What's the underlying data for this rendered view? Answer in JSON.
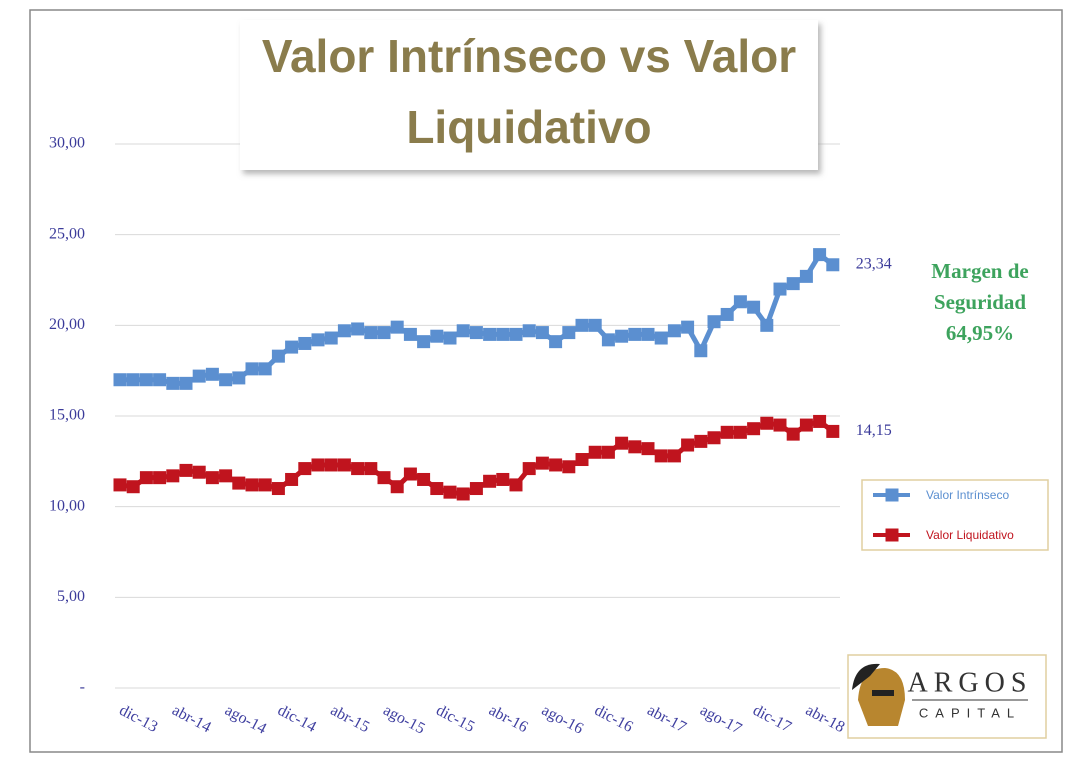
{
  "chart_data": {
    "type": "line",
    "title_lines": [
      "Valor Intrínseco vs Valor",
      "Liquidativo"
    ],
    "categories": [
      "dic-13",
      null,
      null,
      null,
      "abr-14",
      null,
      null,
      null,
      "ago-14",
      null,
      null,
      null,
      "dic-14",
      null,
      null,
      null,
      "abr-15",
      null,
      null,
      null,
      "ago-15",
      null,
      null,
      null,
      "dic-15",
      null,
      null,
      null,
      "abr-16",
      null,
      null,
      null,
      "ago-16",
      null,
      null,
      null,
      "dic-16",
      null,
      null,
      null,
      "abr-17",
      null,
      null,
      null,
      "ago-17",
      null,
      null,
      null,
      "dic-17",
      null,
      null,
      null,
      "abr-18",
      null,
      null
    ],
    "series": [
      {
        "name": "Valor Intrínseco",
        "color": "#5b8fd0",
        "end_label": "23,34",
        "values": [
          17.0,
          17.0,
          17.0,
          17.0,
          16.8,
          16.8,
          17.2,
          17.3,
          17.0,
          17.1,
          17.6,
          17.6,
          18.3,
          18.8,
          19.0,
          19.2,
          19.3,
          19.7,
          19.8,
          19.6,
          19.6,
          19.9,
          19.5,
          19.1,
          19.4,
          19.3,
          19.7,
          19.6,
          19.5,
          19.5,
          19.5,
          19.7,
          19.6,
          19.1,
          19.6,
          20.0,
          20.0,
          19.2,
          19.4,
          19.5,
          19.5,
          19.3,
          19.7,
          19.9,
          18.6,
          20.2,
          20.6,
          21.3,
          21.0,
          20.0,
          22.0,
          22.3,
          22.7,
          23.9,
          23.34
        ]
      },
      {
        "name": "Valor Liquidativo",
        "color": "#c0141e",
        "end_label": "14,15",
        "values": [
          11.2,
          11.1,
          11.6,
          11.6,
          11.7,
          12.0,
          11.9,
          11.6,
          11.7,
          11.3,
          11.2,
          11.2,
          11.0,
          11.5,
          12.1,
          12.3,
          12.3,
          12.3,
          12.1,
          12.1,
          11.6,
          11.1,
          11.8,
          11.5,
          11.0,
          10.8,
          10.7,
          11.0,
          11.4,
          11.5,
          11.2,
          12.1,
          12.4,
          12.3,
          12.2,
          12.6,
          13.0,
          13.0,
          13.5,
          13.3,
          13.2,
          12.8,
          12.8,
          13.4,
          13.6,
          13.8,
          14.1,
          14.1,
          14.3,
          14.6,
          14.5,
          14.0,
          14.5,
          14.7,
          14.15
        ]
      }
    ],
    "ylim": [
      0,
      30
    ],
    "yticks": [
      {
        "value": 0,
        "label": "-"
      },
      {
        "value": 5,
        "label": "5,00"
      },
      {
        "value": 10,
        "label": "10,00"
      },
      {
        "value": 15,
        "label": "15,00"
      },
      {
        "value": 20,
        "label": "20,00"
      },
      {
        "value": 25,
        "label": "25,00"
      },
      {
        "value": 30,
        "label": "30,00"
      }
    ],
    "grid": true,
    "legend": "right",
    "annotation_lines": [
      "Margen de",
      "Seguridad",
      "64,95%"
    ],
    "logo": {
      "name": "ARGOS",
      "subtitle": "CAPITAL"
    }
  }
}
